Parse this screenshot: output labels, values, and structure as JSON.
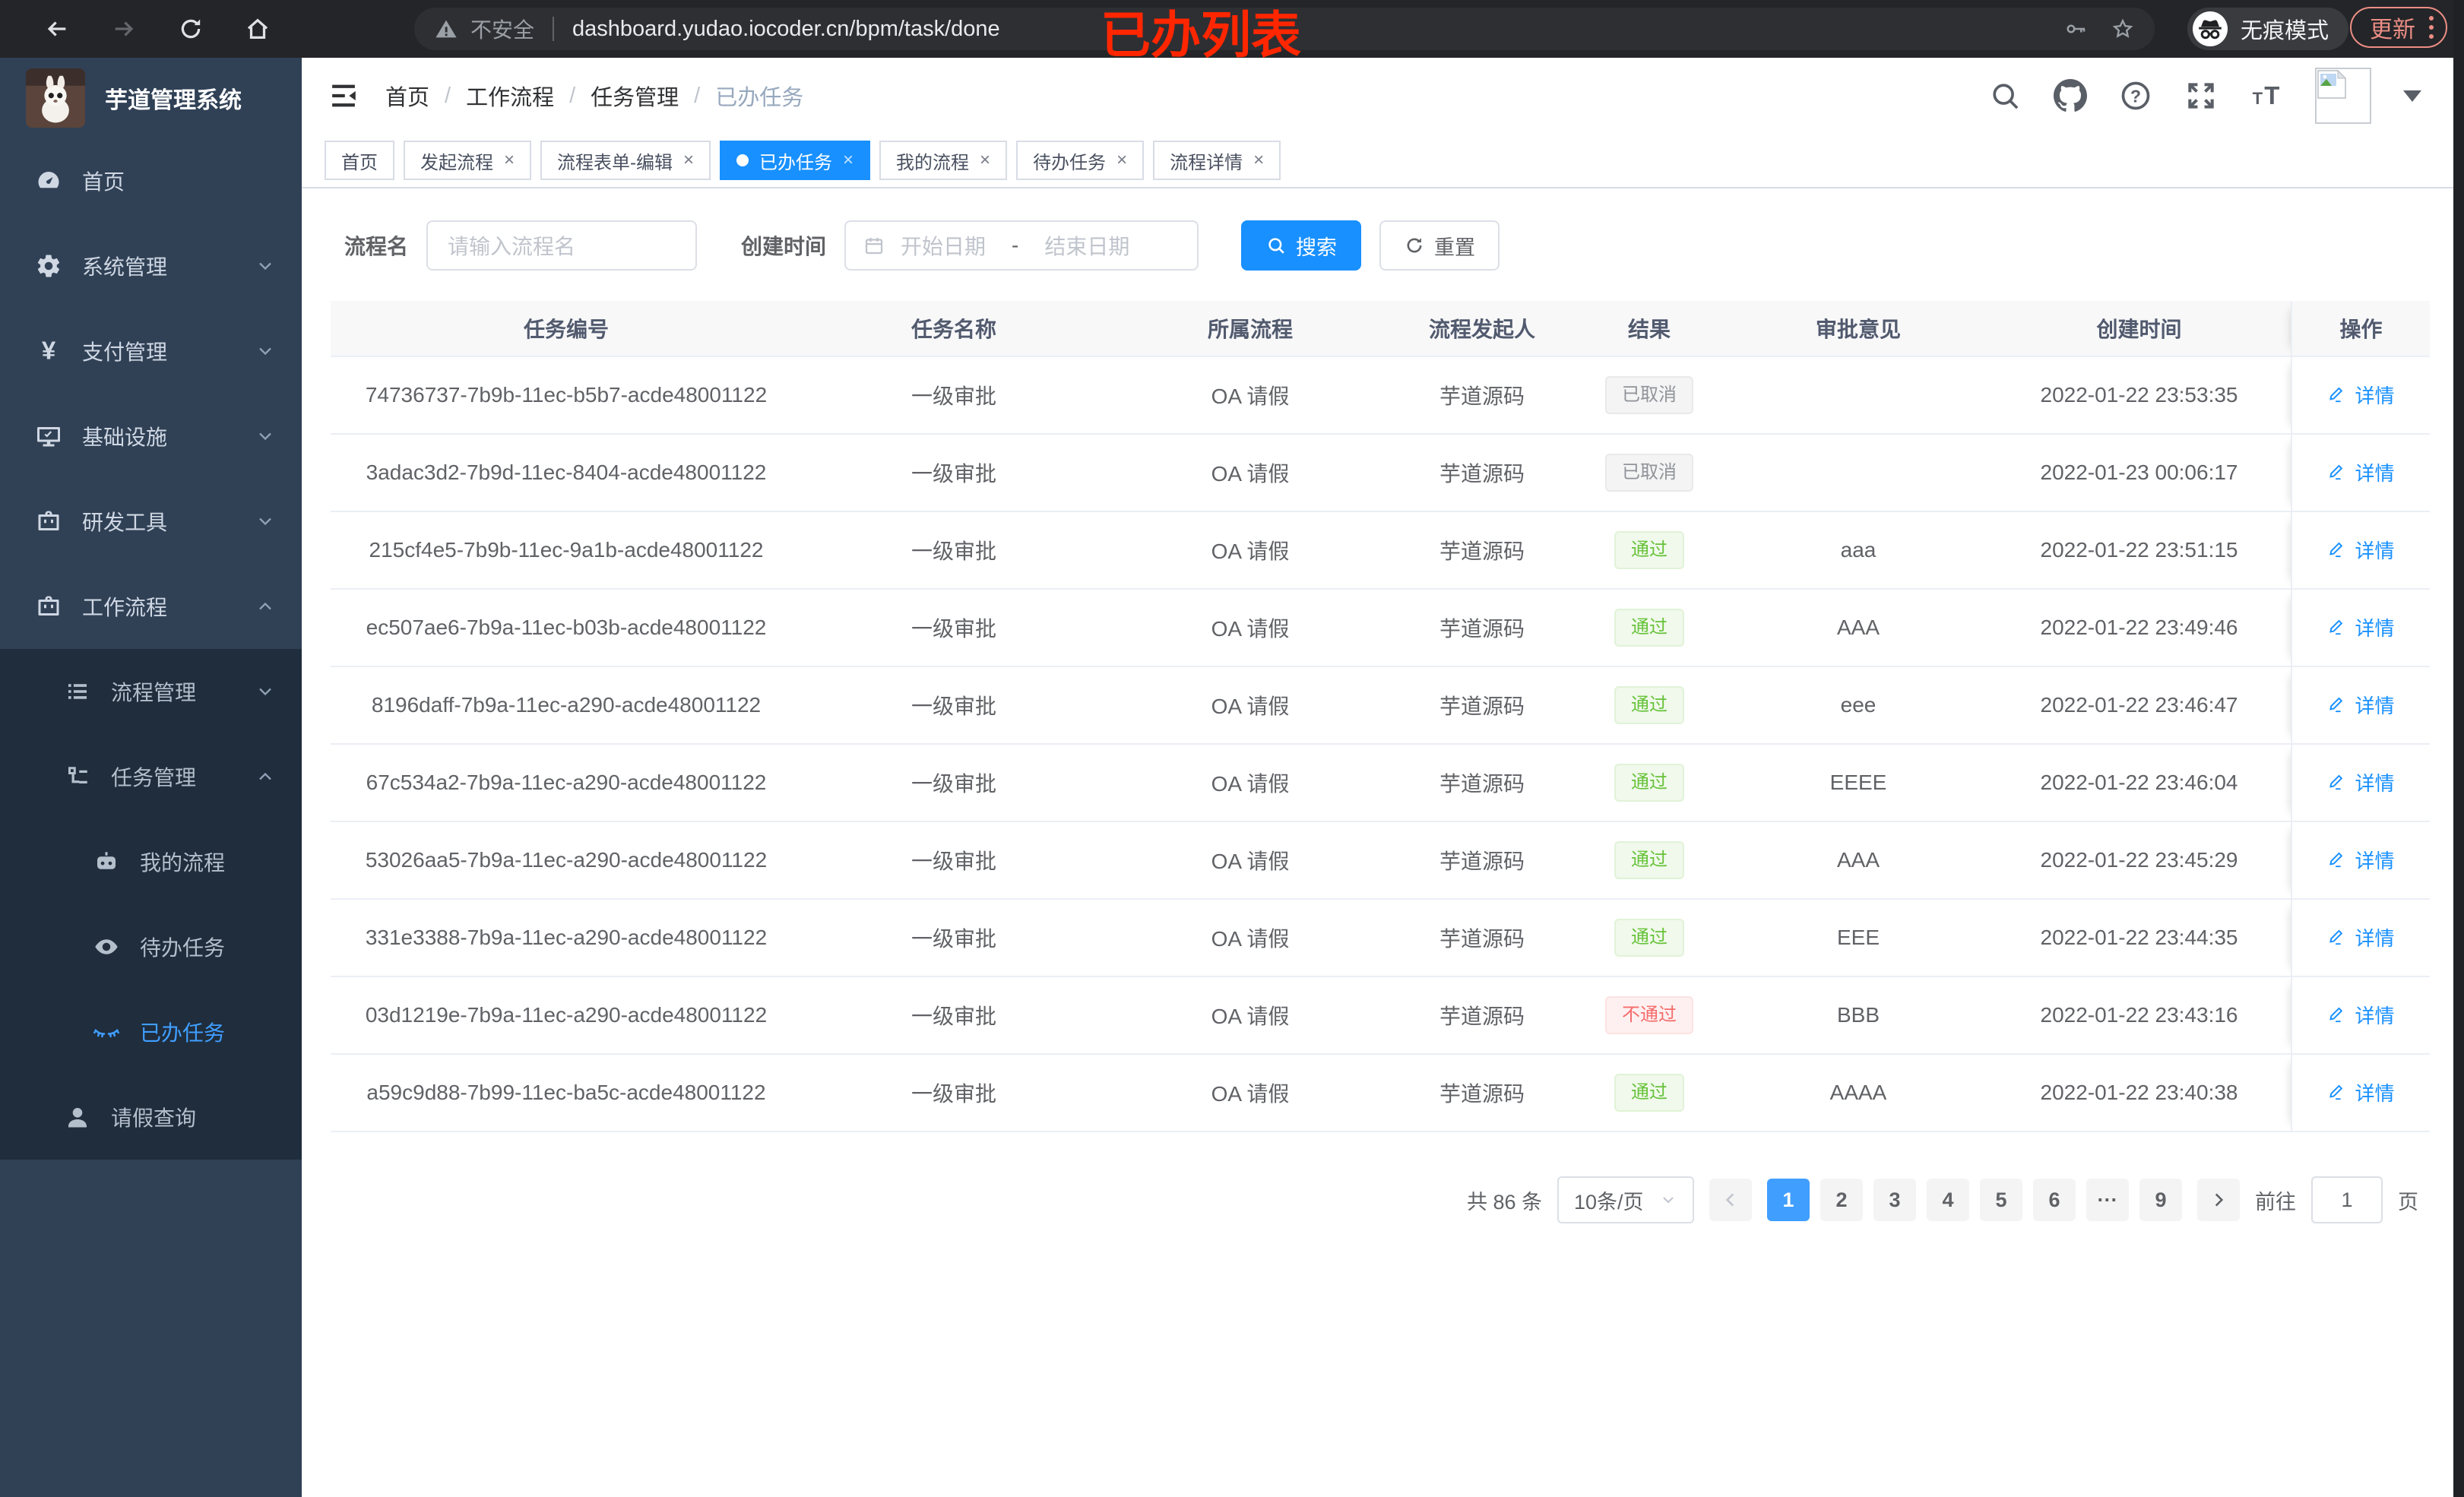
{
  "browser": {
    "security_label": "不安全",
    "url": "dashboard.yudao.iocoder.cn/bpm/task/done",
    "incognito_label": "无痕模式",
    "update_label": "更新"
  },
  "annotation": {
    "text": "已办列表",
    "color": "#ff2600"
  },
  "colors": {
    "accent": "#1890ff",
    "menu_active": "#409eff",
    "success": "#67c23a",
    "danger": "#f56c6c",
    "info": "#909399",
    "sidebar": "#304156",
    "submenu": "#1f2d3d"
  },
  "sidebar": {
    "title": "芋道管理系统",
    "items": [
      {
        "key": "home",
        "label": "首页",
        "icon": "dashboard"
      },
      {
        "key": "system",
        "label": "系统管理",
        "icon": "gear",
        "expandable": true
      },
      {
        "key": "payment",
        "label": "支付管理",
        "icon": "yen",
        "expandable": true
      },
      {
        "key": "infrastructure",
        "label": "基础设施",
        "icon": "monitor",
        "expandable": true
      },
      {
        "key": "dev-tools",
        "label": "研发工具",
        "icon": "toolbox",
        "expandable": true
      },
      {
        "key": "workflow",
        "label": "工作流程",
        "icon": "toolbox",
        "expandable": true,
        "expanded": true,
        "children": [
          {
            "key": "process-management",
            "label": "流程管理",
            "icon": "list",
            "expandable": true
          },
          {
            "key": "task-management",
            "label": "任务管理",
            "icon": "tree",
            "expandable": true,
            "expanded": true,
            "children": [
              {
                "key": "my-process",
                "label": "我的流程",
                "icon": "robot"
              },
              {
                "key": "todo-task",
                "label": "待办任务",
                "icon": "eye"
              },
              {
                "key": "done-task",
                "label": "已办任务",
                "icon": "eye-closed",
                "active": true
              }
            ]
          },
          {
            "key": "leave-query",
            "label": "请假查询",
            "icon": "user"
          }
        ]
      }
    ]
  },
  "header": {
    "breadcrumb": [
      "首页",
      "工作流程",
      "任务管理",
      "已办任务"
    ],
    "breadcrumb_separator": "/"
  },
  "tabs": [
    {
      "label": "首页",
      "closable": false
    },
    {
      "label": "发起流程",
      "closable": true
    },
    {
      "label": "流程表单-编辑",
      "closable": true
    },
    {
      "label": "已办任务",
      "closable": true,
      "active": true
    },
    {
      "label": "我的流程",
      "closable": true
    },
    {
      "label": "待办任务",
      "closable": true
    },
    {
      "label": "流程详情",
      "closable": true
    }
  ],
  "filter": {
    "name_label": "流程名",
    "name_placeholder": "请输入流程名",
    "time_label": "创建时间",
    "start_placeholder": "开始日期",
    "range_separator": "-",
    "end_placeholder": "结束日期",
    "search_label": "搜索",
    "reset_label": "重置"
  },
  "table": {
    "detail_label": "详情",
    "columns": [
      {
        "key": "id",
        "label": "任务编号"
      },
      {
        "key": "name",
        "label": "任务名称"
      },
      {
        "key": "process",
        "label": "所属流程"
      },
      {
        "key": "starter",
        "label": "流程发起人"
      },
      {
        "key": "result",
        "label": "结果"
      },
      {
        "key": "comment",
        "label": "审批意见"
      },
      {
        "key": "created",
        "label": "创建时间"
      },
      {
        "key": "action",
        "label": "操作"
      }
    ],
    "rows": [
      {
        "id": "74736737-7b9b-11ec-b5b7-acde48001122",
        "name": "一级审批",
        "process": "OA 请假",
        "starter": "芋道源码",
        "result": "已取消",
        "result_type": "info",
        "comment": "",
        "created": "2022-01-22 23:53:35"
      },
      {
        "id": "3adac3d2-7b9d-11ec-8404-acde48001122",
        "name": "一级审批",
        "process": "OA 请假",
        "starter": "芋道源码",
        "result": "已取消",
        "result_type": "info",
        "comment": "",
        "created": "2022-01-23 00:06:17"
      },
      {
        "id": "215cf4e5-7b9b-11ec-9a1b-acde48001122",
        "name": "一级审批",
        "process": "OA 请假",
        "starter": "芋道源码",
        "result": "通过",
        "result_type": "success",
        "comment": "aaa",
        "created": "2022-01-22 23:51:15"
      },
      {
        "id": "ec507ae6-7b9a-11ec-b03b-acde48001122",
        "name": "一级审批",
        "process": "OA 请假",
        "starter": "芋道源码",
        "result": "通过",
        "result_type": "success",
        "comment": "AAA",
        "created": "2022-01-22 23:49:46"
      },
      {
        "id": "8196daff-7b9a-11ec-a290-acde48001122",
        "name": "一级审批",
        "process": "OA 请假",
        "starter": "芋道源码",
        "result": "通过",
        "result_type": "success",
        "comment": "eee",
        "created": "2022-01-22 23:46:47"
      },
      {
        "id": "67c534a2-7b9a-11ec-a290-acde48001122",
        "name": "一级审批",
        "process": "OA 请假",
        "starter": "芋道源码",
        "result": "通过",
        "result_type": "success",
        "comment": "EEEE",
        "created": "2022-01-22 23:46:04"
      },
      {
        "id": "53026aa5-7b9a-11ec-a290-acde48001122",
        "name": "一级审批",
        "process": "OA 请假",
        "starter": "芋道源码",
        "result": "通过",
        "result_type": "success",
        "comment": "AAA",
        "created": "2022-01-22 23:45:29"
      },
      {
        "id": "331e3388-7b9a-11ec-a290-acde48001122",
        "name": "一级审批",
        "process": "OA 请假",
        "starter": "芋道源码",
        "result": "通过",
        "result_type": "success",
        "comment": "EEE",
        "created": "2022-01-22 23:44:35"
      },
      {
        "id": "03d1219e-7b9a-11ec-a290-acde48001122",
        "name": "一级审批",
        "process": "OA 请假",
        "starter": "芋道源码",
        "result": "不通过",
        "result_type": "danger",
        "comment": "BBB",
        "created": "2022-01-22 23:43:16"
      },
      {
        "id": "a59c9d88-7b99-11ec-ba5c-acde48001122",
        "name": "一级审批",
        "process": "OA 请假",
        "starter": "芋道源码",
        "result": "通过",
        "result_type": "success",
        "comment": "AAAA",
        "created": "2022-01-22 23:40:38"
      }
    ]
  },
  "pagination": {
    "total": "共 86 条",
    "page_size": "10条/页",
    "pages": [
      "1",
      "2",
      "3",
      "4",
      "5",
      "6",
      "···",
      "9"
    ],
    "active_page": "1",
    "goto": "前往",
    "goto_value": "1",
    "unit": "页"
  }
}
